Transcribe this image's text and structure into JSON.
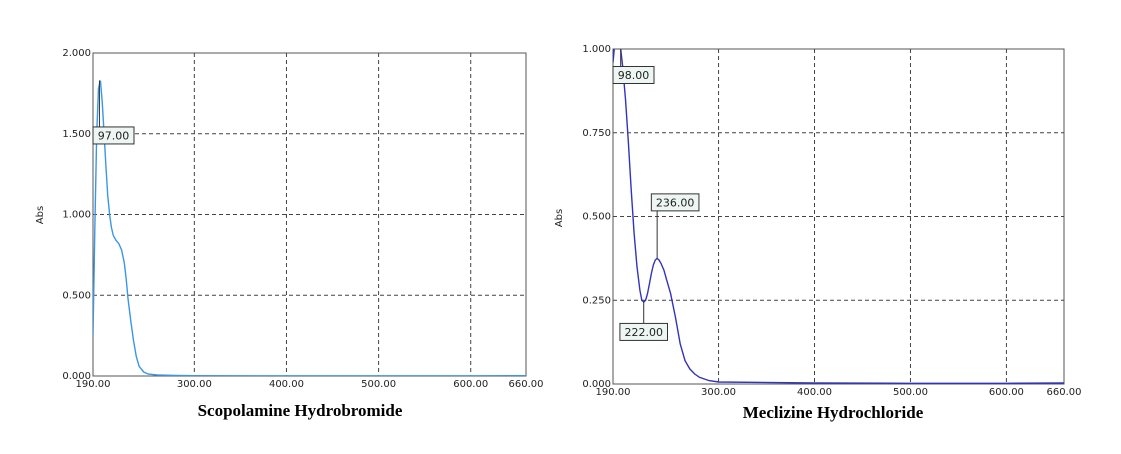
{
  "chart_data": [
    {
      "type": "line",
      "caption": "Scopolamine Hydrobromide",
      "ylabel": "Abs",
      "xlim": [
        190,
        660
      ],
      "ylim": [
        0,
        2
      ],
      "x_ticks": [
        190,
        300,
        400,
        500,
        600,
        660
      ],
      "x_tick_labels": [
        "190.00",
        "300.00",
        "400.00",
        "500.00",
        "600.00",
        "660.00"
      ],
      "y_ticks": [
        0,
        0.5,
        1,
        1.5,
        2
      ],
      "y_tick_labels": [
        "0.000",
        "0.500",
        "1.000",
        "1.500",
        "2.000"
      ],
      "grid": true,
      "color": "#3a96e6",
      "series": [
        {
          "x": [
            190,
            192,
            194,
            196,
            198,
            200,
            202,
            204,
            206,
            208,
            210,
            212,
            215,
            218,
            221,
            224,
            226,
            228,
            231,
            234,
            237,
            240,
            245,
            250,
            260,
            280,
            300,
            400,
            500,
            600,
            660
          ],
          "y": [
            0.25,
            0.9,
            1.5,
            1.78,
            1.83,
            1.7,
            1.5,
            1.3,
            1.12,
            1.0,
            0.92,
            0.87,
            0.84,
            0.82,
            0.78,
            0.7,
            0.6,
            0.48,
            0.34,
            0.22,
            0.12,
            0.06,
            0.025,
            0.012,
            0.006,
            0.003,
            0.002,
            0.0015,
            0.0012,
            0.0015,
            0.002
          ]
        }
      ],
      "annotations": [
        {
          "text": "97.00",
          "x": 197,
          "y": 1.83
        }
      ]
    },
    {
      "type": "line",
      "caption": "Meclizine Hydrochloride",
      "ylabel": "Abs",
      "xlim": [
        190,
        660
      ],
      "ylim": [
        0,
        1
      ],
      "x_ticks": [
        190,
        300,
        400,
        500,
        600,
        660
      ],
      "x_tick_labels": [
        "190.00",
        "300.00",
        "400.00",
        "500.00",
        "600.00",
        "660.00"
      ],
      "y_ticks": [
        0,
        0.25,
        0.5,
        0.75,
        1
      ],
      "y_tick_labels": [
        "0.000",
        "0.250",
        "0.500",
        "0.750",
        "1.000"
      ],
      "grid": true,
      "color": "#3333bb",
      "series": [
        {
          "x": [
            190,
            192,
            194,
            196,
            198,
            200,
            203,
            206,
            209,
            212,
            215,
            218,
            220,
            222,
            224,
            226,
            228,
            230,
            232,
            234,
            236,
            238,
            240,
            243,
            246,
            250,
            255,
            260,
            265,
            270,
            275,
            280,
            290,
            300,
            400,
            500,
            600,
            660
          ],
          "y": [
            0.96,
            1.02,
            1.05,
            1.03,
            1.0,
            0.95,
            0.85,
            0.72,
            0.58,
            0.45,
            0.35,
            0.28,
            0.25,
            0.245,
            0.25,
            0.27,
            0.3,
            0.33,
            0.355,
            0.37,
            0.375,
            0.37,
            0.36,
            0.34,
            0.31,
            0.27,
            0.2,
            0.12,
            0.07,
            0.045,
            0.03,
            0.02,
            0.01,
            0.006,
            0.003,
            0.002,
            0.002,
            0.003
          ]
        }
      ],
      "annotations": [
        {
          "text": "98.00",
          "x": 198,
          "y": 1.0
        },
        {
          "text": "236.00",
          "x": 236,
          "y": 0.375
        },
        {
          "text": "222.00",
          "x": 222,
          "y": 0.245
        }
      ]
    }
  ]
}
